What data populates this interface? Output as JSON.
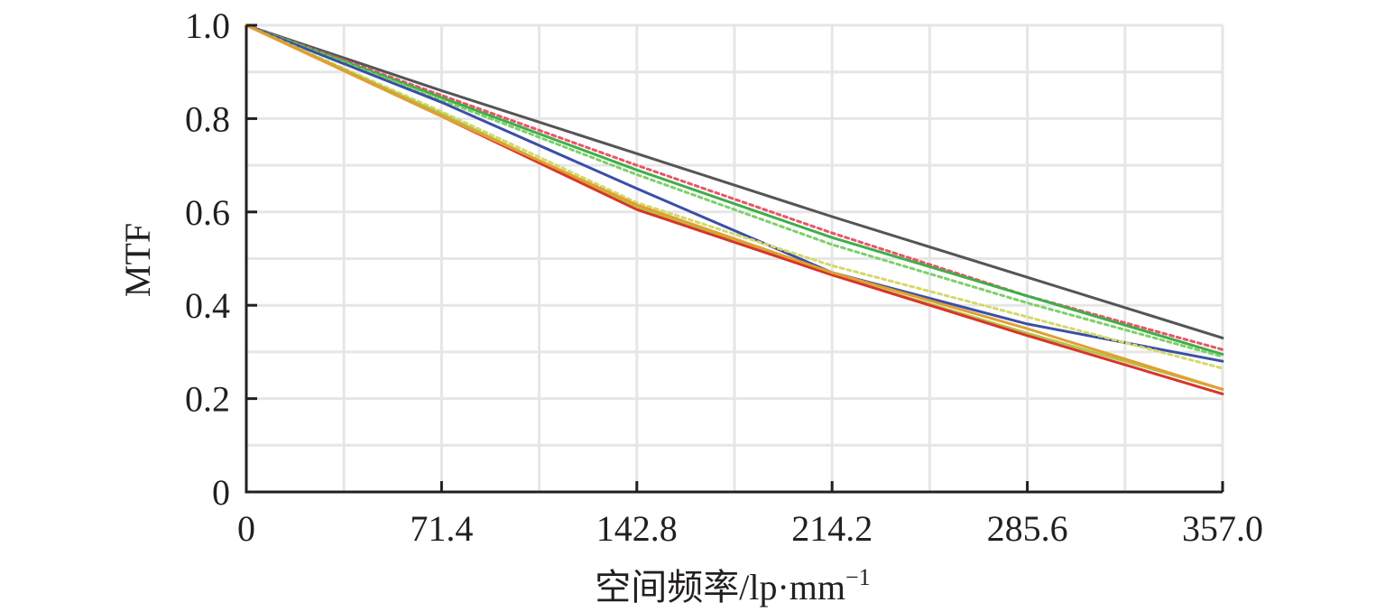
{
  "chart_data": {
    "type": "line",
    "xlabel": "空间频率/lp·mm",
    "xlabel_superscript": "−1",
    "ylabel": "MTF",
    "xlim": [
      0,
      357
    ],
    "ylim": [
      0,
      1
    ],
    "x_ticks": [
      0,
      71.4,
      142.8,
      214.2,
      285.6,
      357.0
    ],
    "x_tick_labels": [
      "0",
      "71.4",
      "142.8",
      "214.2",
      "285.6",
      "357.0"
    ],
    "y_ticks": [
      0,
      0.2,
      0.4,
      0.6,
      0.8,
      1.0
    ],
    "y_tick_labels": [
      "0",
      "0.2",
      "0.4",
      "0.6",
      "0.8",
      "1.0"
    ],
    "x_minor_grid": [
      35.7,
      107.1,
      178.5,
      249.9,
      321.3
    ],
    "y_minor_grid": [
      0.1,
      0.3,
      0.5,
      0.7,
      0.9
    ],
    "grid": true,
    "legend": "none",
    "series": [
      {
        "color": "#555555",
        "dashed": false,
        "x": [
          0,
          71.4,
          142.8,
          214.2,
          285.6,
          357
        ],
        "y": [
          1.0,
          0.86,
          0.725,
          0.59,
          0.46,
          0.33
        ]
      },
      {
        "color": "#e8556a",
        "dashed": true,
        "x": [
          0,
          71.4,
          142.8,
          214.2,
          285.6,
          357
        ],
        "y": [
          1.0,
          0.85,
          0.7,
          0.555,
          0.42,
          0.305
        ]
      },
      {
        "color": "#3fae49",
        "dashed": false,
        "x": [
          0,
          71.4,
          142.8,
          214.2,
          285.6,
          357
        ],
        "y": [
          1.0,
          0.845,
          0.69,
          0.545,
          0.42,
          0.295
        ]
      },
      {
        "color": "#7ed06a",
        "dashed": true,
        "x": [
          0,
          71.4,
          142.8,
          214.2,
          285.6,
          357
        ],
        "y": [
          1.0,
          0.84,
          0.68,
          0.53,
          0.405,
          0.29
        ]
      },
      {
        "color": "#3b4fa8",
        "dashed": false,
        "x": [
          0,
          71.4,
          142.8,
          214.2,
          285.6,
          357
        ],
        "y": [
          1.0,
          0.835,
          0.65,
          0.47,
          0.36,
          0.28
        ]
      },
      {
        "color": "#d4d96a",
        "dashed": true,
        "x": [
          0,
          71.4,
          142.8,
          214.2,
          285.6,
          357
        ],
        "y": [
          1.0,
          0.815,
          0.62,
          0.485,
          0.375,
          0.265
        ]
      },
      {
        "color": "#b5c24a",
        "dashed": false,
        "x": [
          0,
          71.4,
          142.8,
          214.2,
          285.6,
          357
        ],
        "y": [
          1.0,
          0.81,
          0.61,
          0.465,
          0.34,
          0.22
        ]
      },
      {
        "color": "#d9342b",
        "dashed": false,
        "x": [
          0,
          71.4,
          142.8,
          214.2,
          285.6,
          357
        ],
        "y": [
          1.0,
          0.805,
          0.605,
          0.465,
          0.335,
          0.21
        ]
      },
      {
        "color": "#e0a030",
        "dashed": false,
        "x": [
          0,
          71.4,
          142.8,
          214.2,
          285.6,
          357
        ],
        "y": [
          1.0,
          0.805,
          0.615,
          0.47,
          0.35,
          0.22
        ]
      }
    ]
  }
}
